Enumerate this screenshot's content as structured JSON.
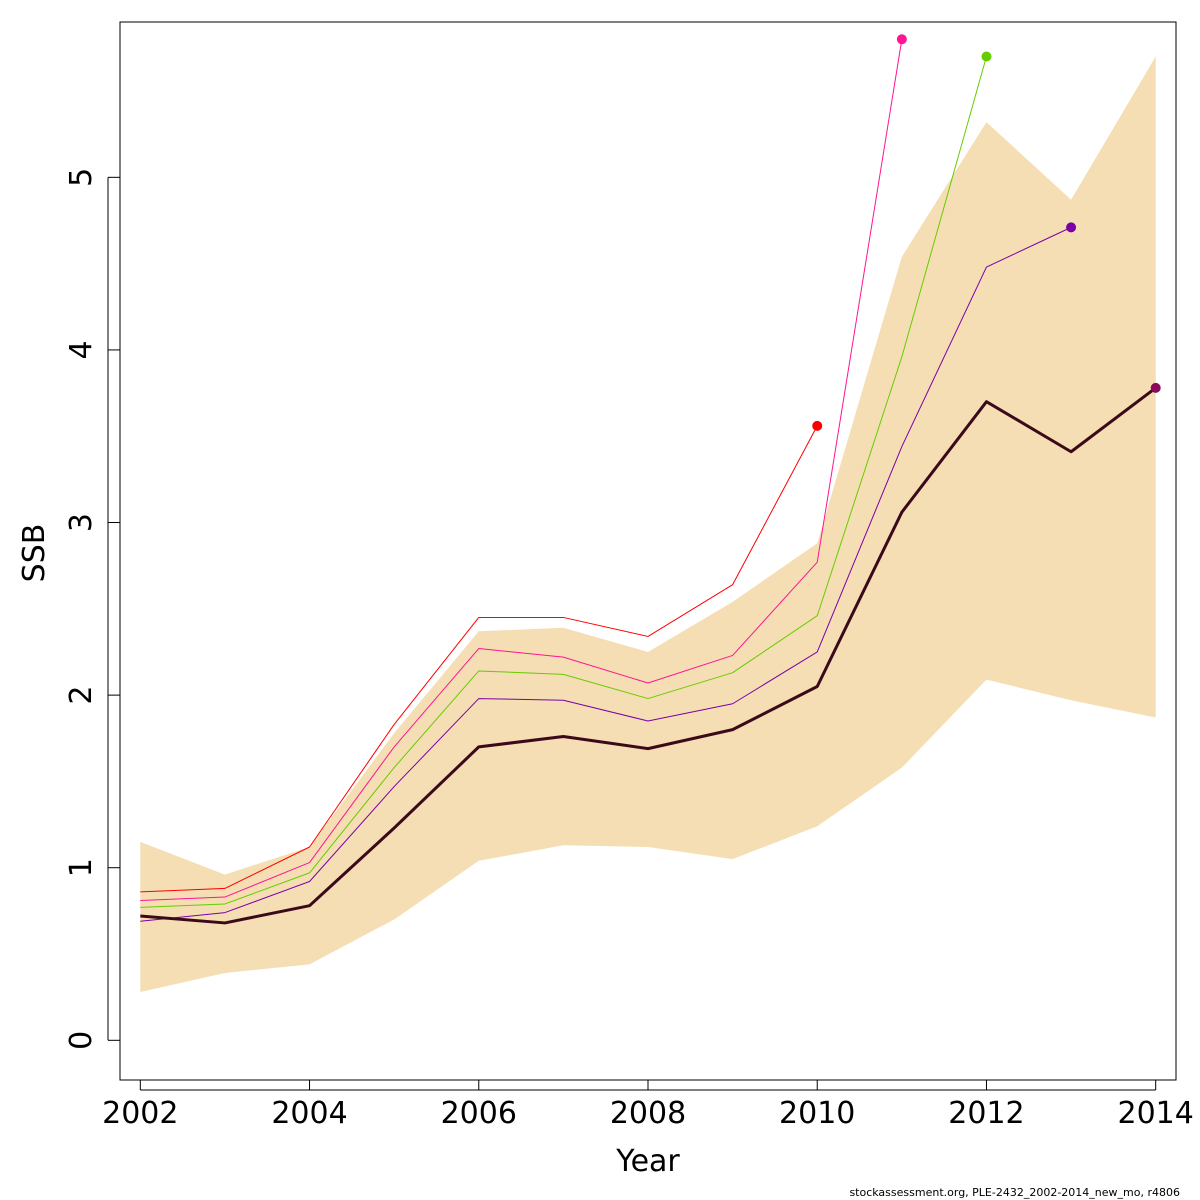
{
  "chart_data": {
    "type": "line",
    "title": "",
    "xlabel": "Year",
    "ylabel": "SSB",
    "xlim": [
      2001.76,
      2014.24
    ],
    "ylim": [
      -0.23,
      5.9
    ],
    "x_ticks": [
      2002,
      2004,
      2006,
      2008,
      2010,
      2012,
      2014
    ],
    "y_ticks": [
      0,
      1,
      2,
      3,
      4,
      5
    ],
    "grid": false,
    "legend": "none",
    "band": {
      "color": "#f5deb3",
      "x": [
        2002,
        2003,
        2004,
        2005,
        2006,
        2007,
        2008,
        2009,
        2010,
        2011,
        2012,
        2013,
        2014
      ],
      "lower": [
        0.28,
        0.39,
        0.44,
        0.7,
        1.04,
        1.13,
        1.12,
        1.05,
        1.24,
        1.58,
        2.09,
        1.97,
        1.87
      ],
      "upper": [
        1.15,
        0.96,
        1.12,
        1.78,
        2.37,
        2.39,
        2.25,
        2.54,
        2.88,
        4.54,
        5.32,
        4.87,
        5.7
      ]
    },
    "series": [
      {
        "color": "#ff0000",
        "endpoint": true,
        "x": [
          2002,
          2003,
          2004,
          2005,
          2006,
          2007,
          2008,
          2009,
          2010
        ],
        "y": [
          0.86,
          0.88,
          1.12,
          1.83,
          2.45,
          2.45,
          2.34,
          2.64,
          3.56
        ]
      },
      {
        "color": "#ff1493",
        "endpoint": true,
        "x": [
          2002,
          2003,
          2004,
          2005,
          2006,
          2007,
          2008,
          2009,
          2010,
          2011
        ],
        "y": [
          0.81,
          0.83,
          1.03,
          1.7,
          2.27,
          2.22,
          2.07,
          2.23,
          2.77,
          5.8
        ]
      },
      {
        "color": "#66cc00",
        "endpoint": true,
        "x": [
          2002,
          2003,
          2004,
          2005,
          2006,
          2007,
          2008,
          2009,
          2010,
          2011,
          2012
        ],
        "y": [
          0.77,
          0.79,
          0.97,
          1.58,
          2.14,
          2.12,
          1.98,
          2.13,
          2.46,
          3.96,
          5.7
        ]
      },
      {
        "color": "#7b00a8",
        "endpoint": true,
        "x": [
          2002,
          2003,
          2004,
          2005,
          2006,
          2007,
          2008,
          2009,
          2010,
          2011,
          2012,
          2013
        ],
        "y": [
          0.69,
          0.74,
          0.92,
          1.47,
          1.98,
          1.97,
          1.85,
          1.95,
          2.25,
          3.44,
          4.48,
          4.71
        ]
      },
      {
        "color": "#3b0a1a",
        "endpoint": false,
        "bold": true,
        "x": [
          2002,
          2003,
          2004,
          2005,
          2006,
          2007,
          2008,
          2009,
          2010,
          2011,
          2012,
          2013,
          2014
        ],
        "y": [
          0.72,
          0.68,
          0.78,
          1.23,
          1.7,
          1.76,
          1.69,
          1.8,
          2.05,
          3.06,
          3.7,
          3.41,
          3.78
        ],
        "endpoint_color": "#8b0a5a"
      }
    ]
  },
  "footer": "stockassessment.org, PLE-2432_2002-2014_new_mo, r4806"
}
